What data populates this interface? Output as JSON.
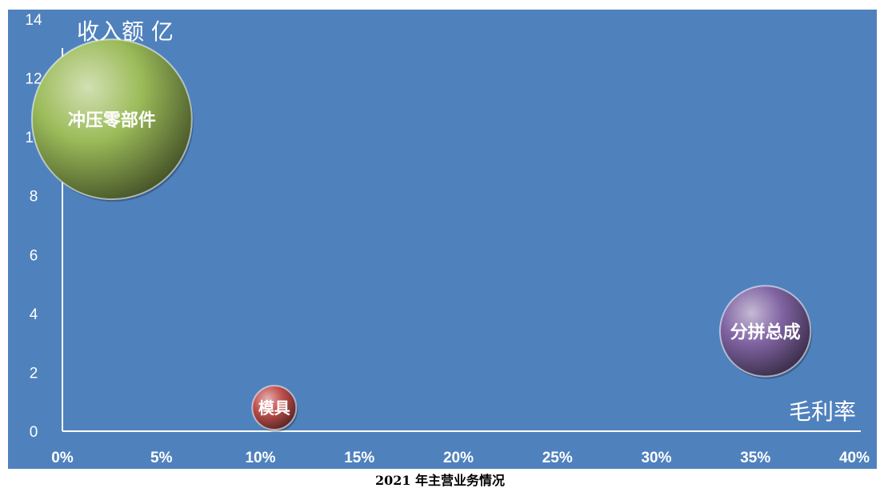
{
  "caption": "2021 年主营业务情况",
  "chart_data": {
    "type": "bubble",
    "title": "2021 年主营业务情况",
    "xlabel": "毛利率",
    "ylabel": "收入额 亿",
    "xlim": [
      0,
      0.4
    ],
    "ylim": [
      0,
      14
    ],
    "x_ticks": [
      "0%",
      "5%",
      "10%",
      "15%",
      "20%",
      "25%",
      "30%",
      "35%",
      "40%"
    ],
    "y_ticks": [
      "0",
      "2",
      "4",
      "6",
      "8",
      "10",
      "12",
      "14"
    ],
    "grid": false,
    "background_color": "#4f81bd",
    "series": [
      {
        "label": "冲压零部件",
        "x": 0.025,
        "y": 10.6,
        "size": 10.6,
        "color": "#9bbb59"
      },
      {
        "label": "模具",
        "x": 0.107,
        "y": 0.8,
        "size": 0.8,
        "color": "#c0504d"
      },
      {
        "label": "分拼总成",
        "x": 0.355,
        "y": 3.4,
        "size": 3.4,
        "color": "#8064a2"
      }
    ]
  }
}
